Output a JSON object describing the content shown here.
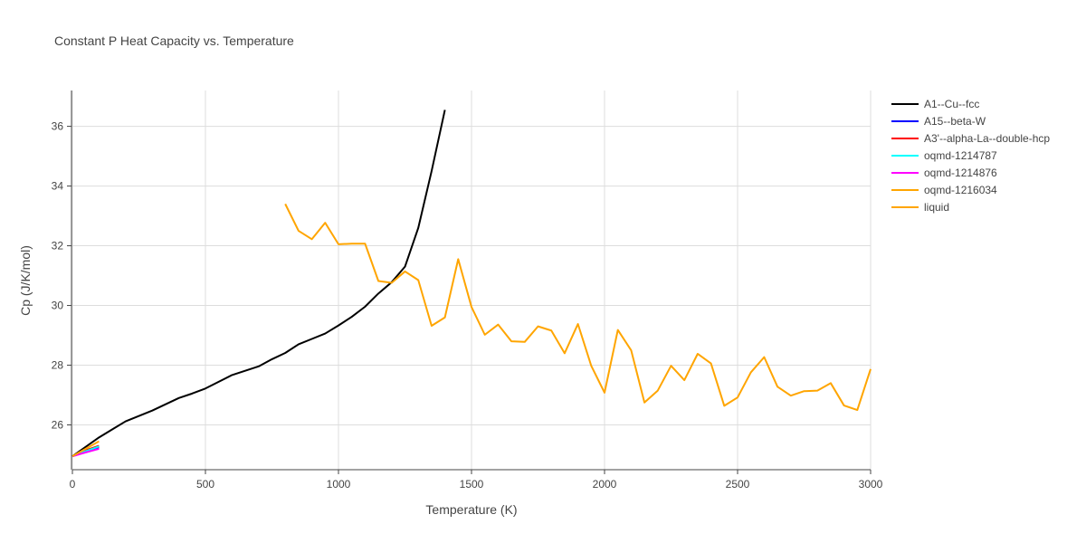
{
  "chart_data": {
    "type": "line",
    "title": "Constant P Heat Capacity vs. Temperature",
    "xlabel": "Temperature (K)",
    "ylabel": "Cp (J/K/mol)",
    "xlim": [
      0,
      3000
    ],
    "ylim": [
      24.5,
      37.2
    ],
    "xticks": [
      0,
      500,
      1000,
      1500,
      2000,
      2500,
      3000
    ],
    "yticks": [
      26,
      28,
      30,
      32,
      34,
      36
    ],
    "grid": true,
    "legend_position": "top-right",
    "series": [
      {
        "name": "A1--Cu--fcc",
        "color": "#000000",
        "x": [
          0,
          100,
          200,
          300,
          400,
          450,
          500,
          600,
          700,
          750,
          800,
          850,
          900,
          950,
          1000,
          1050,
          1100,
          1150,
          1200,
          1250,
          1300,
          1350,
          1400
        ],
        "y": [
          24.95,
          25.58,
          26.12,
          26.48,
          26.9,
          27.05,
          27.22,
          27.67,
          27.96,
          28.2,
          28.41,
          28.7,
          28.88,
          29.06,
          29.33,
          29.62,
          29.96,
          30.4,
          30.78,
          31.3,
          32.6,
          34.5,
          36.55
        ]
      },
      {
        "name": "A15--beta-W",
        "color": "#0000ff",
        "x": [
          0,
          50,
          100
        ],
        "y": [
          24.95,
          25.1,
          25.25
        ]
      },
      {
        "name": "A3'--alpha-La--double-hcp",
        "color": "#ff0000",
        "x": [
          0,
          50,
          100
        ],
        "y": [
          24.95,
          25.15,
          25.3
        ]
      },
      {
        "name": "oqmd-1214787",
        "color": "#00ffff",
        "x": [
          0,
          50,
          100
        ],
        "y": [
          24.95,
          25.12,
          25.28
        ]
      },
      {
        "name": "oqmd-1214876",
        "color": "#ff00ff",
        "x": [
          0,
          50,
          100
        ],
        "y": [
          24.95,
          25.08,
          25.2
        ]
      },
      {
        "name": "oqmd-1216034",
        "color": "#ffa500",
        "x": [
          0,
          50,
          100
        ],
        "y": [
          24.95,
          25.2,
          25.45
        ]
      },
      {
        "name": "liquid",
        "color": "#ffa500",
        "x": [
          800,
          850,
          900,
          950,
          1000,
          1050,
          1100,
          1150,
          1200,
          1250,
          1300,
          1350,
          1400,
          1450,
          1500,
          1550,
          1600,
          1650,
          1700,
          1750,
          1800,
          1850,
          1900,
          1950,
          2000,
          2050,
          2100,
          2150,
          2200,
          2250,
          2300,
          2350,
          2400,
          2450,
          2500,
          2550,
          2600,
          2650,
          2700,
          2750,
          2800,
          2850,
          2900,
          2950,
          3000
        ],
        "y": [
          33.4,
          32.5,
          32.22,
          32.77,
          32.05,
          32.07,
          32.07,
          30.82,
          30.76,
          31.14,
          30.85,
          29.32,
          29.6,
          31.55,
          29.95,
          29.02,
          29.36,
          28.8,
          28.78,
          29.3,
          29.16,
          28.4,
          29.38,
          27.98,
          27.08,
          29.18,
          28.5,
          26.75,
          27.15,
          27.98,
          27.5,
          28.38,
          28.06,
          26.64,
          26.92,
          27.76,
          28.27,
          27.28,
          26.98,
          27.13,
          27.15,
          27.4,
          26.65,
          26.5,
          27.87
        ]
      }
    ]
  }
}
